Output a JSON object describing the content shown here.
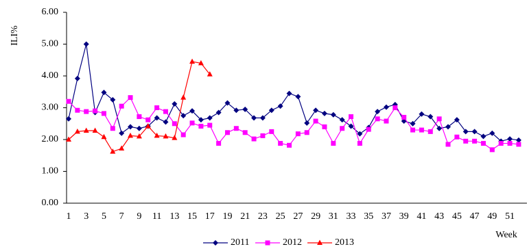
{
  "chart_data": {
    "type": "line",
    "y_label": "ILI%",
    "x_label": "Week",
    "categories": [
      1,
      null,
      3,
      null,
      5,
      null,
      7,
      null,
      9,
      null,
      11,
      null,
      13,
      null,
      15,
      null,
      17,
      null,
      19,
      null,
      21,
      null,
      23,
      null,
      25,
      null,
      27,
      null,
      29,
      null,
      31,
      null,
      33,
      null,
      35,
      null,
      37,
      null,
      39,
      null,
      41,
      null,
      43,
      null,
      45,
      null,
      47,
      null,
      49,
      null,
      51,
      null
    ],
    "series": [
      {
        "name": "2011",
        "color": "#000080",
        "marker": "diamond",
        "values": [
          2.65,
          3.92,
          5.0,
          2.85,
          3.48,
          3.25,
          2.2,
          2.4,
          2.35,
          2.42,
          2.68,
          2.55,
          3.12,
          2.75,
          2.9,
          2.62,
          2.68,
          2.85,
          3.15,
          2.92,
          2.95,
          2.68,
          2.68,
          2.92,
          3.05,
          3.45,
          3.35,
          2.52,
          2.92,
          2.82,
          2.78,
          2.62,
          2.42,
          2.18,
          2.38,
          2.88,
          3.02,
          3.1,
          2.58,
          2.5,
          2.8,
          2.72,
          2.35,
          2.4,
          2.62,
          2.25,
          2.25,
          2.1,
          2.2,
          1.95,
          2.02,
          1.98
        ]
      },
      {
        "name": "2012",
        "color": "#ff00ff",
        "marker": "square",
        "values": [
          3.2,
          2.92,
          2.88,
          2.9,
          2.82,
          2.35,
          3.05,
          3.32,
          2.72,
          2.62,
          3.0,
          2.88,
          2.5,
          2.15,
          2.52,
          2.42,
          2.45,
          1.88,
          2.22,
          2.35,
          2.22,
          2.02,
          2.12,
          2.25,
          1.88,
          1.82,
          2.18,
          2.22,
          2.58,
          2.4,
          1.88,
          2.35,
          2.72,
          1.88,
          2.32,
          2.65,
          2.58,
          3.0,
          2.7,
          2.3,
          2.3,
          2.25,
          2.65,
          1.85,
          2.08,
          1.95,
          1.95,
          1.88,
          1.68,
          1.88,
          1.88,
          1.85
        ]
      },
      {
        "name": "2013",
        "color": "#ff0000",
        "marker": "triangle",
        "values": [
          2.0,
          2.25,
          2.28,
          2.28,
          2.08,
          1.62,
          1.72,
          2.12,
          2.1,
          2.42,
          2.12,
          2.1,
          2.05,
          3.32,
          4.45,
          4.4,
          4.05,
          null,
          null,
          null,
          null,
          null,
          null,
          null,
          null,
          null,
          null,
          null,
          null,
          null,
          null,
          null,
          null,
          null,
          null,
          null,
          null,
          null,
          null,
          null,
          null,
          null,
          null,
          null,
          null,
          null,
          null,
          null,
          null,
          null,
          null,
          null
        ]
      }
    ],
    "ylim": [
      0,
      6
    ],
    "yticks": [
      {
        "value": 0,
        "label": "0.00"
      },
      {
        "value": 1,
        "label": "1.00"
      },
      {
        "value": 2,
        "label": "2.00"
      },
      {
        "value": 3,
        "label": "3.00"
      },
      {
        "value": 4,
        "label": "4.00"
      },
      {
        "value": 5,
        "label": "5.00"
      },
      {
        "value": 6,
        "label": "6.00"
      }
    ],
    "legend": "bottom"
  }
}
